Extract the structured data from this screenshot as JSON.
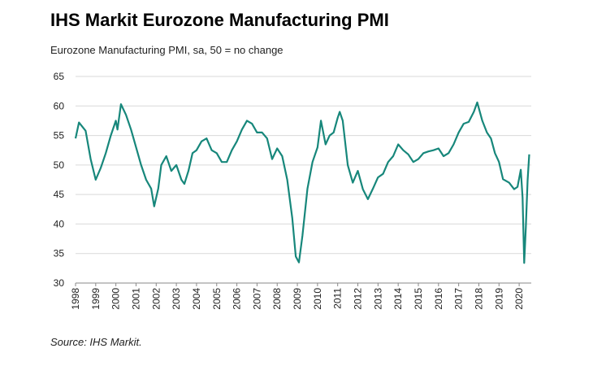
{
  "chart_data": {
    "type": "line",
    "title": "IHS Markit Eurozone Manufacturing PMI",
    "subtitle": "Eurozone Manufacturing PMI, sa, 50 = no change",
    "source": "Source: IHS Markit.",
    "color": "#17877b",
    "grid": true,
    "x": [
      1998.0,
      1998.17,
      1998.5,
      1998.75,
      1999.0,
      1999.25,
      1999.5,
      1999.75,
      2000.0,
      2000.08,
      2000.25,
      2000.5,
      2000.75,
      2001.0,
      2001.25,
      2001.5,
      2001.75,
      2001.9,
      2002.1,
      2002.25,
      2002.5,
      2002.75,
      2003.0,
      2003.25,
      2003.4,
      2003.6,
      2003.8,
      2004.0,
      2004.25,
      2004.5,
      2004.75,
      2005.0,
      2005.25,
      2005.5,
      2005.75,
      2006.0,
      2006.25,
      2006.5,
      2006.75,
      2007.0,
      2007.25,
      2007.5,
      2007.75,
      2008.0,
      2008.25,
      2008.5,
      2008.75,
      2008.92,
      2009.08,
      2009.25,
      2009.5,
      2009.75,
      2010.0,
      2010.17,
      2010.4,
      2010.6,
      2010.8,
      2011.0,
      2011.1,
      2011.25,
      2011.5,
      2011.75,
      2012.0,
      2012.25,
      2012.5,
      2012.75,
      2013.0,
      2013.25,
      2013.5,
      2013.75,
      2014.0,
      2014.25,
      2014.5,
      2014.75,
      2015.0,
      2015.25,
      2015.5,
      2015.75,
      2016.0,
      2016.25,
      2016.5,
      2016.75,
      2017.0,
      2017.25,
      2017.5,
      2017.75,
      2017.92,
      2018.17,
      2018.4,
      2018.6,
      2018.8,
      2019.0,
      2019.2,
      2019.5,
      2019.75,
      2019.92,
      2020.08,
      2020.17,
      2020.25,
      2020.33,
      2020.42,
      2020.5
    ],
    "values": [
      54.5,
      57.2,
      55.8,
      51,
      47.5,
      49.5,
      52,
      55,
      57.5,
      56,
      60.3,
      58.5,
      56,
      53,
      50,
      47.5,
      46,
      43,
      46,
      50,
      51.5,
      49,
      50,
      47.5,
      46.8,
      49,
      52,
      52.5,
      54,
      54.5,
      52.5,
      52,
      50.5,
      50.5,
      52.5,
      54,
      56,
      57.5,
      57,
      55.5,
      55.5,
      54.5,
      51,
      52.8,
      51.5,
      47.5,
      41,
      34.5,
      33.5,
      38,
      46,
      50.5,
      53,
      57.5,
      53.5,
      55,
      55.5,
      58,
      59,
      57.5,
      50,
      47,
      49,
      45.9,
      44.2,
      46,
      47.9,
      48.5,
      50.5,
      51.5,
      53.5,
      52.5,
      51.8,
      50.5,
      51,
      52,
      52.3,
      52.5,
      52.8,
      51.5,
      52,
      53.5,
      55.5,
      57,
      57.3,
      59,
      60.6,
      57.5,
      55.5,
      54.5,
      52,
      50.5,
      47.6,
      47,
      45.9,
      46.3,
      49.2,
      44.5,
      33.4,
      39.4,
      47.4,
      51.8
    ],
    "xlim": [
      1998,
      2020.6
    ],
    "xticks": [
      1998,
      1999,
      2000,
      2001,
      2002,
      2003,
      2004,
      2005,
      2006,
      2007,
      2008,
      2009,
      2010,
      2011,
      2012,
      2013,
      2014,
      2015,
      2016,
      2017,
      2018,
      2019,
      2020
    ],
    "ylim": [
      30,
      65
    ],
    "yticks": [
      30,
      35,
      40,
      45,
      50,
      55,
      60,
      65
    ]
  }
}
